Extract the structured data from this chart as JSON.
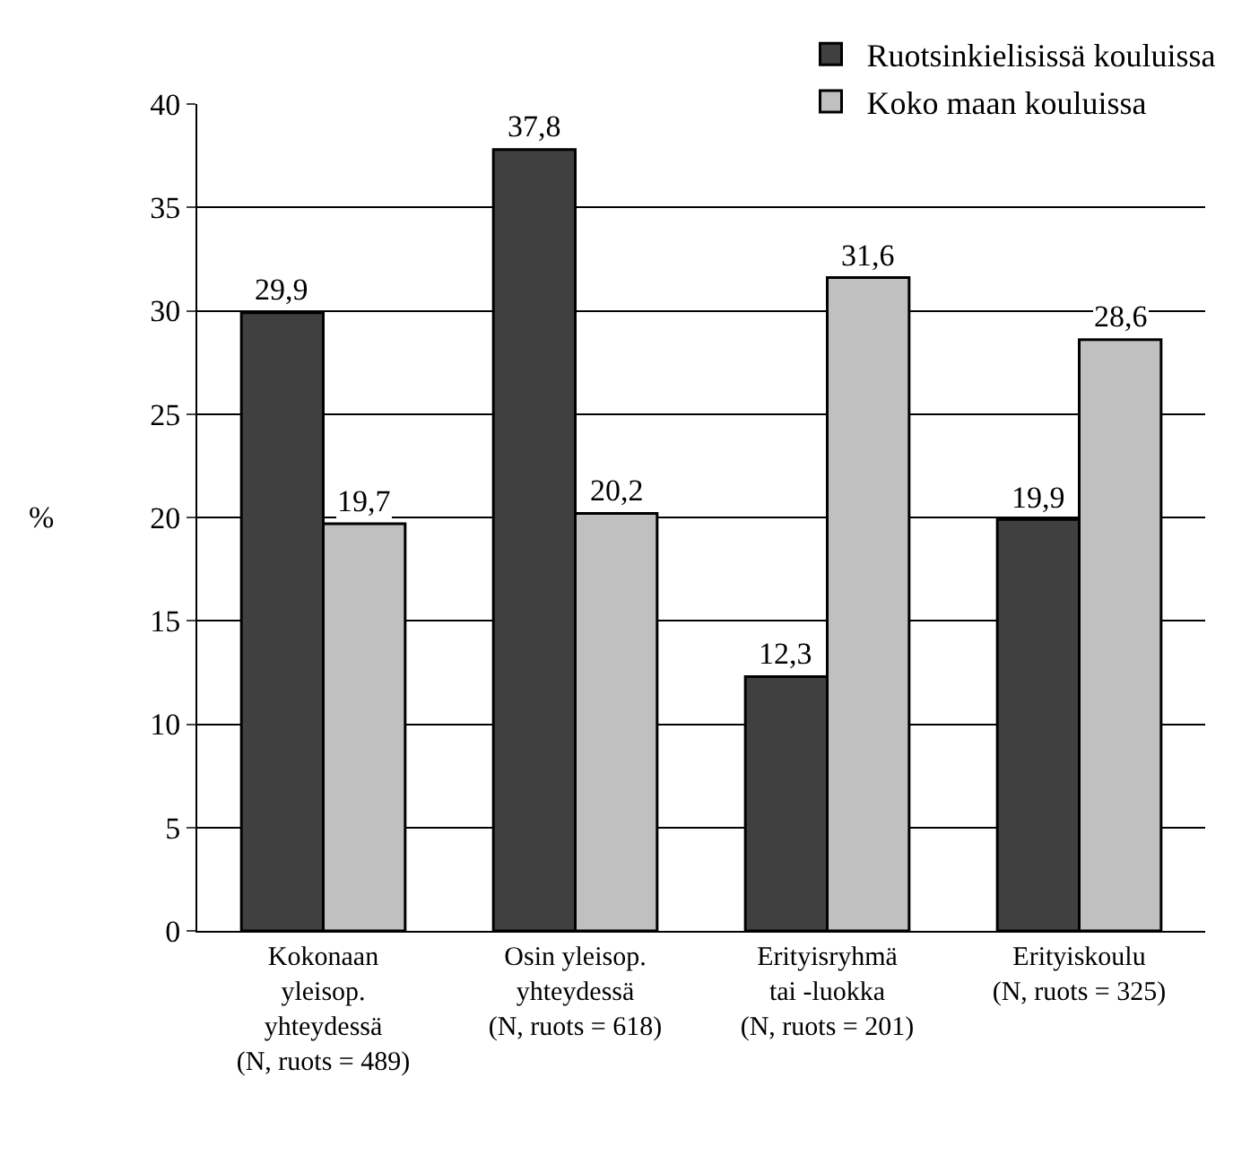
{
  "chart_data": {
    "type": "bar",
    "ylabel": "%",
    "categories": [
      "Kokonaan\nyleisop.\nyhteydessä\n(N, ruots = 489)",
      "Osin yleisop.\nyhteydessä\n(N, ruots = 618)",
      "Erityisryhmä\ntai -luokka\n(N, ruots = 201)",
      "Erityiskoulu\n(N, ruots = 325)"
    ],
    "series": [
      {
        "name": "Ruotsinkielisissä kouluissa",
        "color": "#404040",
        "values": [
          29.9,
          37.8,
          12.3,
          19.9
        ],
        "value_labels": [
          "29,9",
          "37,8",
          "12,3",
          "19,9"
        ]
      },
      {
        "name": "Koko maan kouluissa",
        "color": "#c0c0c0",
        "values": [
          19.7,
          20.2,
          31.6,
          28.6
        ],
        "value_labels": [
          "19,7",
          "20,2",
          "31,6",
          "28,6"
        ]
      }
    ],
    "ylim": [
      0,
      40
    ],
    "yticks": [
      0,
      5,
      10,
      15,
      20,
      25,
      30,
      35,
      40
    ],
    "grid": "y",
    "legend": "top right"
  }
}
